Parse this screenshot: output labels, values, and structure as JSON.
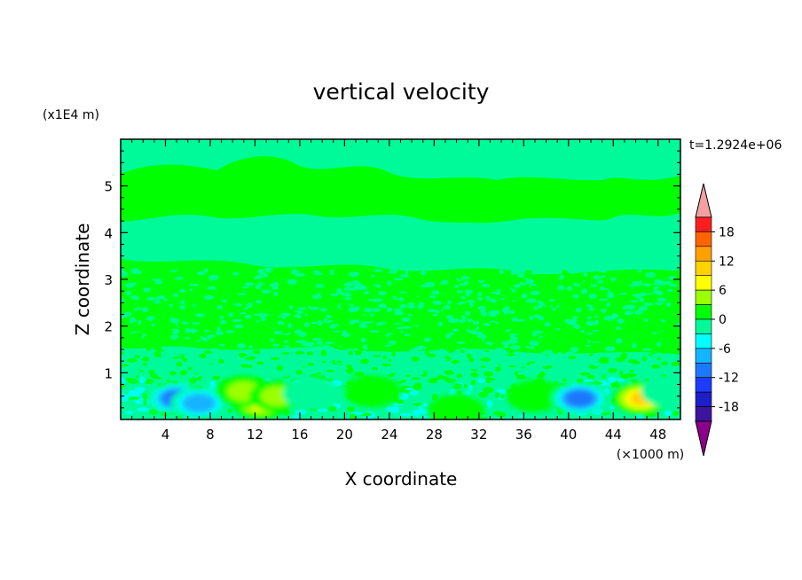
{
  "chart_data": {
    "type": "heatmap",
    "title": "vertical velocity",
    "xlabel": "X coordinate",
    "ylabel": "Z coordinate",
    "x_unit": "(×1000 m)",
    "y_unit": "(x1E4 m)",
    "time_label": "t=1.2924e+06",
    "xlim": [
      0,
      50
    ],
    "ylim": [
      0,
      6
    ],
    "x_ticks": [
      "4",
      "8",
      "12",
      "16",
      "20",
      "24",
      "28",
      "32",
      "36",
      "40",
      "44",
      "48"
    ],
    "y_ticks": [
      "1",
      "2",
      "3",
      "4",
      "5"
    ],
    "colorbar": {
      "levels": [
        -21,
        -18,
        -15,
        -12,
        -9,
        -6,
        -3,
        0,
        3,
        6,
        9,
        12,
        15,
        18,
        21
      ],
      "tick_labels": [
        "18",
        "12",
        "6",
        "0",
        "-6",
        "-12",
        "-18"
      ],
      "colors": [
        "#8b008b",
        "#3c14a0",
        "#1e1ec8",
        "#1e3cff",
        "#1e78ff",
        "#14b4ff",
        "#00ffff",
        "#00fa9a",
        "#00ff00",
        "#9bff00",
        "#ffff00",
        "#ffd200",
        "#ffa000",
        "#ff6400",
        "#ff1e1e",
        "#f5a0a0"
      ]
    },
    "features": [
      {
        "x": 5,
        "z": 0.45,
        "value": -12
      },
      {
        "x": 7,
        "z": 0.35,
        "value": -9
      },
      {
        "x": 12.5,
        "z": 0.35,
        "value": 8
      },
      {
        "x": 11,
        "z": 0.6,
        "value": 5
      },
      {
        "x": 14,
        "z": 0.5,
        "value": 3
      },
      {
        "x": 17,
        "z": 0.55,
        "value": -3
      },
      {
        "x": 22.5,
        "z": 0.6,
        "value": 2
      },
      {
        "x": 30,
        "z": 0.2,
        "value": 2
      },
      {
        "x": 37,
        "z": 0.5,
        "value": 2
      },
      {
        "x": 41,
        "z": 0.45,
        "value": -12
      },
      {
        "x": 46.5,
        "z": 0.45,
        "value": 9
      },
      {
        "x": 49,
        "z": 0.6,
        "value": -3
      }
    ]
  }
}
